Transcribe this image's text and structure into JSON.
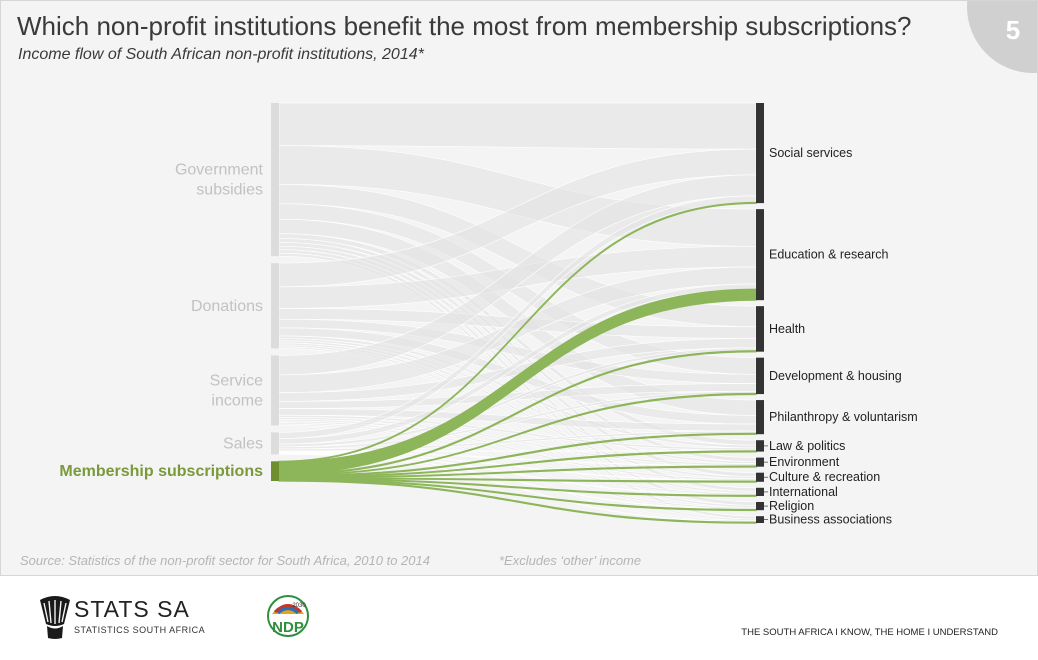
{
  "header": {
    "title": "Which non-profit institutions benefit the most from membership subscriptions?",
    "subtitle": "Income flow of South African non-profit institutions, 2014*",
    "slide_number": "5"
  },
  "chart_data": {
    "type": "sankey",
    "highlighted_source": "Membership subscriptions",
    "sources": [
      {
        "label_lines": [
          "Government",
          "subsidies"
        ],
        "share": 0.35,
        "highlight": false
      },
      {
        "label_lines": [
          "Donations"
        ],
        "share": 0.195,
        "highlight": false
      },
      {
        "label_lines": [
          "Service",
          "income"
        ],
        "share": 0.16,
        "highlight": false
      },
      {
        "label_lines": [
          "Sales"
        ],
        "share": 0.05,
        "highlight": false
      },
      {
        "label_lines": [
          "Membership subscriptions"
        ],
        "share": 0.045,
        "highlight": true
      }
    ],
    "destinations": [
      {
        "label": "Social services",
        "share": 0.22
      },
      {
        "label": "Education & research",
        "share": 0.2
      },
      {
        "label": "Health",
        "share": 0.1
      },
      {
        "label": "Development & housing",
        "share": 0.08
      },
      {
        "label": "Philanthropy & voluntarism",
        "share": 0.075
      },
      {
        "label": "Law & politics",
        "share": 0.025
      },
      {
        "label": "Environment",
        "share": 0.02
      },
      {
        "label": "Culture & recreation",
        "share": 0.02
      },
      {
        "label": "International",
        "share": 0.018
      },
      {
        "label": "Religion",
        "share": 0.018
      },
      {
        "label": "Business associations",
        "share": 0.015
      }
    ],
    "membership_flows": [
      0.0015,
      0.024,
      0.002,
      0.0012,
      0.002,
      0.0015,
      0.0015,
      0.0015,
      0.0015,
      0.0015,
      0.0018
    ],
    "colors": {
      "highlight": "#8db55a",
      "highlight_label": "#7a9a3a",
      "flow_gray": "#e2e2e2",
      "source_bar": "#dcdcdc",
      "destination_bar": "#333333"
    }
  },
  "footer": {
    "source": "Source: Statistics of the non-profit sector for South Africa, 2010 to 2014",
    "footnote": "*Excludes ‘other’ income",
    "org_name": "STATS SA",
    "org_full": "STATISTICS SOUTH AFRICA",
    "ndp_text": "NDP",
    "ndp_year": "2030",
    "tagline": "THE SOUTH AFRICA I KNOW, THE HOME I UNDERSTAND"
  }
}
